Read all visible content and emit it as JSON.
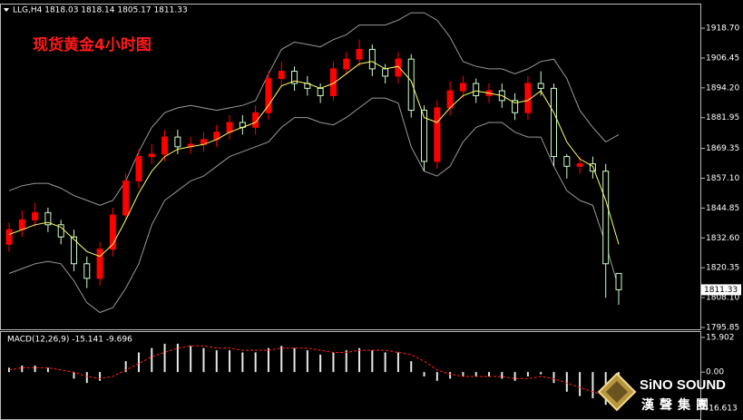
{
  "chart_data": {
    "type": "candlestick",
    "header": "LLG,H4  1818.03 1818.14 1805.17 1811.33",
    "title": "现货黄金4小时图",
    "up_color": "#ff0000",
    "down_color": "#ccffcc",
    "open": [
      1830,
      1836,
      1840,
      1843,
      1838,
      1833,
      1822,
      1816,
      1828,
      1842,
      1856,
      1866,
      1867,
      1874,
      1870,
      1871,
      1873,
      1876,
      1880,
      1878,
      1884,
      1898,
      1901,
      1896,
      1894,
      1891,
      1902,
      1906,
      1910,
      1902,
      1899,
      1906,
      1885,
      1864,
      1886,
      1893,
      1896,
      1891,
      1893,
      1889,
      1884,
      1896,
      1894,
      1866,
      1862,
      1863,
      1860,
      1818.03
    ],
    "high": [
      1839,
      1844,
      1847,
      1845,
      1840,
      1836,
      1825,
      1831,
      1845,
      1859,
      1869,
      1871,
      1877,
      1877,
      1874,
      1876,
      1879,
      1883,
      1883,
      1887,
      1901,
      1905,
      1903,
      1899,
      1896,
      1905,
      1909,
      1914,
      1912,
      1904,
      1909,
      1908,
      1887,
      1889,
      1897,
      1899,
      1898,
      1896,
      1896,
      1892,
      1899,
      1901,
      1896,
      1867,
      1866,
      1866,
      1863,
      1818.14
    ],
    "low": [
      1827,
      1833,
      1837,
      1835,
      1830,
      1819,
      1812,
      1813,
      1825,
      1840,
      1853,
      1863,
      1864,
      1867,
      1867,
      1868,
      1870,
      1873,
      1875,
      1875,
      1881,
      1895,
      1893,
      1891,
      1888,
      1889,
      1900,
      1903,
      1899,
      1896,
      1896,
      1882,
      1860,
      1861,
      1883,
      1890,
      1888,
      1888,
      1886,
      1881,
      1881,
      1891,
      1862,
      1857,
      1859,
      1857,
      1808,
      1805.17
    ],
    "close": [
      1836,
      1840,
      1843,
      1838,
      1833,
      1822,
      1816,
      1828,
      1842,
      1856,
      1866,
      1867,
      1874,
      1870,
      1871,
      1873,
      1876,
      1880,
      1878,
      1884,
      1898,
      1901,
      1896,
      1894,
      1891,
      1902,
      1906,
      1910,
      1902,
      1899,
      1906,
      1885,
      1864,
      1886,
      1893,
      1896,
      1891,
      1893,
      1889,
      1884,
      1896,
      1894,
      1866,
      1862,
      1863,
      1860,
      1822,
      1811.33
    ],
    "ma": {
      "color": "#ffff66",
      "values": [
        1834,
        1836,
        1838,
        1839,
        1837,
        1832,
        1827,
        1825,
        1830,
        1840,
        1851,
        1860,
        1866,
        1869,
        1870,
        1871,
        1873,
        1876,
        1878,
        1880,
        1887,
        1895,
        1897,
        1896,
        1894,
        1896,
        1900,
        1904,
        1905,
        1902,
        1903,
        1897,
        1882,
        1880,
        1886,
        1891,
        1893,
        1892,
        1891,
        1888,
        1889,
        1893,
        1884,
        1872,
        1865,
        1862,
        1848,
        1830
      ]
    },
    "bb_upper": {
      "color": "#9a9a9a",
      "values": [
        1852,
        1854,
        1855,
        1855,
        1853,
        1850,
        1848,
        1846,
        1848,
        1856,
        1868,
        1878,
        1884,
        1886,
        1887,
        1886,
        1885,
        1886,
        1887,
        1889,
        1900,
        1910,
        1913,
        1912,
        1911,
        1914,
        1916,
        1920,
        1920,
        1920,
        1922,
        1925,
        1925,
        1922,
        1915,
        1905,
        1903,
        1902,
        1902,
        1900,
        1902,
        1905,
        1906,
        1898,
        1885,
        1878,
        1872,
        1875
      ]
    },
    "bb_lower": {
      "color": "#9a9a9a",
      "values": [
        1818,
        1820,
        1822,
        1823,
        1822,
        1815,
        1806,
        1802,
        1804,
        1812,
        1822,
        1838,
        1848,
        1852,
        1856,
        1858,
        1862,
        1866,
        1868,
        1870,
        1872,
        1878,
        1882,
        1882,
        1880,
        1879,
        1882,
        1886,
        1890,
        1890,
        1888,
        1870,
        1860,
        1858,
        1862,
        1872,
        1878,
        1880,
        1880,
        1876,
        1874,
        1874,
        1862,
        1852,
        1848,
        1846,
        1830,
        1812
      ]
    },
    "ylim": [
      1795.1,
      1928.4
    ],
    "yticks": [
      {
        "value": 1918.7,
        "label": "1918.70"
      },
      {
        "value": 1906.45,
        "label": "1906.45"
      },
      {
        "value": 1894.2,
        "label": "1894.20"
      },
      {
        "value": 1881.95,
        "label": "1881.95"
      },
      {
        "value": 1869.35,
        "label": "1869.35"
      },
      {
        "value": 1857.1,
        "label": "1857.10"
      },
      {
        "value": 1844.85,
        "label": "1844.85"
      },
      {
        "value": 1832.6,
        "label": "1832.60"
      },
      {
        "value": 1820.35,
        "label": "1820.35"
      },
      {
        "value": 1808.1,
        "label": "1808.10"
      },
      {
        "value": 1795.85,
        "label": "1795.85"
      }
    ],
    "macd": {
      "header": "MACD(12,26,9) -15.141 -9.696",
      "hist_color": "#e8e8e8",
      "signal_color": "#ff2020",
      "hist": [
        2,
        3,
        3,
        2,
        0,
        -3,
        -5,
        -4,
        0,
        5,
        9,
        11,
        13,
        13,
        12,
        11,
        10,
        10,
        9,
        9,
        11,
        12,
        11,
        10,
        8,
        9,
        10,
        11,
        10,
        9,
        9,
        5,
        -2,
        -4,
        -3,
        -2,
        -2,
        -2,
        -3,
        -4,
        -2,
        -1,
        -5,
        -9,
        -11,
        -12,
        -15,
        -15.141
      ],
      "signal": [
        1,
        2,
        2,
        2,
        1,
        0,
        -2,
        -3,
        -2,
        1,
        4,
        7,
        9,
        11,
        12,
        12,
        11,
        11,
        10,
        10,
        10,
        11,
        11,
        11,
        10,
        9,
        9,
        10,
        10,
        10,
        9,
        8,
        5,
        1,
        -1,
        -2,
        -2,
        -2,
        -2,
        -3,
        -3,
        -2,
        -3,
        -5,
        -7,
        -9,
        -11,
        -9.696
      ],
      "ylim": [
        -21.55,
        18.37
      ],
      "yticks": [
        15.902,
        {
          "value": 0,
          "label": "0.00"
        },
        -16.613
      ]
    }
  },
  "logo": {
    "brand": "SiNO SOUND",
    "brand_cn": "漢聲集團"
  }
}
